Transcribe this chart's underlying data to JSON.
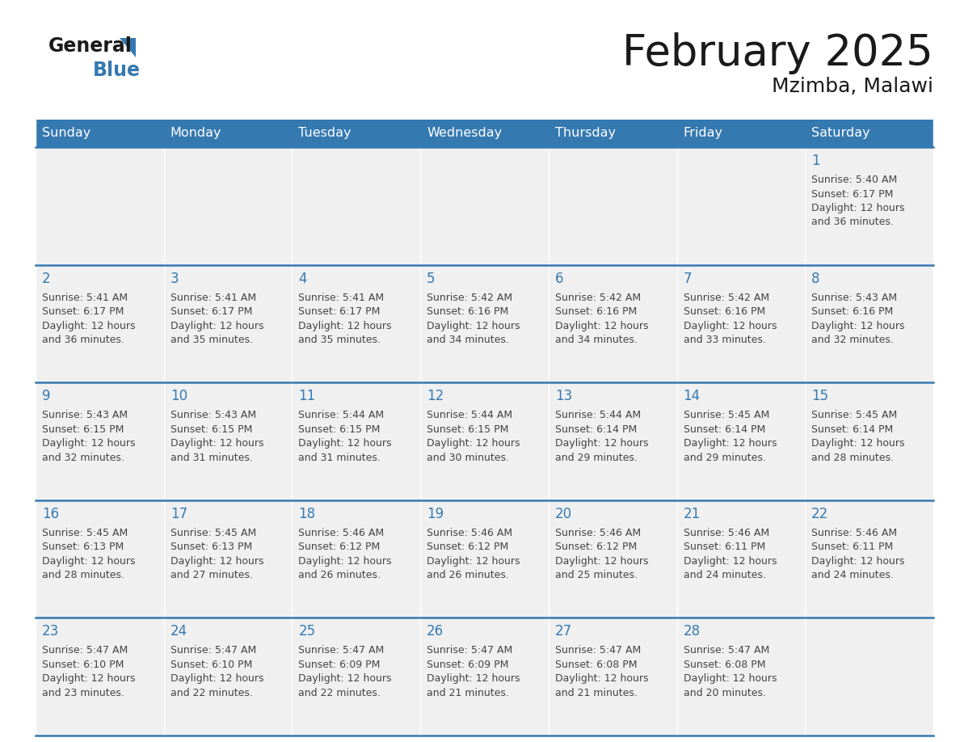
{
  "title": "February 2025",
  "subtitle": "Mzimba, Malawi",
  "header_bg": "#3579b1",
  "header_text_color": "#ffffff",
  "cell_bg": "#f0f0f0",
  "day_number_color": "#3579b1",
  "cell_text_color": "#444444",
  "border_color": "#3579b1",
  "grid_line_color": "#cccccc",
  "weekdays": [
    "Sunday",
    "Monday",
    "Tuesday",
    "Wednesday",
    "Thursday",
    "Friday",
    "Saturday"
  ],
  "calendar_data": [
    [
      {
        "day": null,
        "sunrise": null,
        "sunset": null,
        "daylight": null
      },
      {
        "day": null,
        "sunrise": null,
        "sunset": null,
        "daylight": null
      },
      {
        "day": null,
        "sunrise": null,
        "sunset": null,
        "daylight": null
      },
      {
        "day": null,
        "sunrise": null,
        "sunset": null,
        "daylight": null
      },
      {
        "day": null,
        "sunrise": null,
        "sunset": null,
        "daylight": null
      },
      {
        "day": null,
        "sunrise": null,
        "sunset": null,
        "daylight": null
      },
      {
        "day": 1,
        "sunrise": "5:40 AM",
        "sunset": "6:17 PM",
        "daylight": "12 hours and 36 minutes."
      }
    ],
    [
      {
        "day": 2,
        "sunrise": "5:41 AM",
        "sunset": "6:17 PM",
        "daylight": "12 hours and 36 minutes."
      },
      {
        "day": 3,
        "sunrise": "5:41 AM",
        "sunset": "6:17 PM",
        "daylight": "12 hours and 35 minutes."
      },
      {
        "day": 4,
        "sunrise": "5:41 AM",
        "sunset": "6:17 PM",
        "daylight": "12 hours and 35 minutes."
      },
      {
        "day": 5,
        "sunrise": "5:42 AM",
        "sunset": "6:16 PM",
        "daylight": "12 hours and 34 minutes."
      },
      {
        "day": 6,
        "sunrise": "5:42 AM",
        "sunset": "6:16 PM",
        "daylight": "12 hours and 34 minutes."
      },
      {
        "day": 7,
        "sunrise": "5:42 AM",
        "sunset": "6:16 PM",
        "daylight": "12 hours and 33 minutes."
      },
      {
        "day": 8,
        "sunrise": "5:43 AM",
        "sunset": "6:16 PM",
        "daylight": "12 hours and 32 minutes."
      }
    ],
    [
      {
        "day": 9,
        "sunrise": "5:43 AM",
        "sunset": "6:15 PM",
        "daylight": "12 hours and 32 minutes."
      },
      {
        "day": 10,
        "sunrise": "5:43 AM",
        "sunset": "6:15 PM",
        "daylight": "12 hours and 31 minutes."
      },
      {
        "day": 11,
        "sunrise": "5:44 AM",
        "sunset": "6:15 PM",
        "daylight": "12 hours and 31 minutes."
      },
      {
        "day": 12,
        "sunrise": "5:44 AM",
        "sunset": "6:15 PM",
        "daylight": "12 hours and 30 minutes."
      },
      {
        "day": 13,
        "sunrise": "5:44 AM",
        "sunset": "6:14 PM",
        "daylight": "12 hours and 29 minutes."
      },
      {
        "day": 14,
        "sunrise": "5:45 AM",
        "sunset": "6:14 PM",
        "daylight": "12 hours and 29 minutes."
      },
      {
        "day": 15,
        "sunrise": "5:45 AM",
        "sunset": "6:14 PM",
        "daylight": "12 hours and 28 minutes."
      }
    ],
    [
      {
        "day": 16,
        "sunrise": "5:45 AM",
        "sunset": "6:13 PM",
        "daylight": "12 hours and 28 minutes."
      },
      {
        "day": 17,
        "sunrise": "5:45 AM",
        "sunset": "6:13 PM",
        "daylight": "12 hours and 27 minutes."
      },
      {
        "day": 18,
        "sunrise": "5:46 AM",
        "sunset": "6:12 PM",
        "daylight": "12 hours and 26 minutes."
      },
      {
        "day": 19,
        "sunrise": "5:46 AM",
        "sunset": "6:12 PM",
        "daylight": "12 hours and 26 minutes."
      },
      {
        "day": 20,
        "sunrise": "5:46 AM",
        "sunset": "6:12 PM",
        "daylight": "12 hours and 25 minutes."
      },
      {
        "day": 21,
        "sunrise": "5:46 AM",
        "sunset": "6:11 PM",
        "daylight": "12 hours and 24 minutes."
      },
      {
        "day": 22,
        "sunrise": "5:46 AM",
        "sunset": "6:11 PM",
        "daylight": "12 hours and 24 minutes."
      }
    ],
    [
      {
        "day": 23,
        "sunrise": "5:47 AM",
        "sunset": "6:10 PM",
        "daylight": "12 hours and 23 minutes."
      },
      {
        "day": 24,
        "sunrise": "5:47 AM",
        "sunset": "6:10 PM",
        "daylight": "12 hours and 22 minutes."
      },
      {
        "day": 25,
        "sunrise": "5:47 AM",
        "sunset": "6:09 PM",
        "daylight": "12 hours and 22 minutes."
      },
      {
        "day": 26,
        "sunrise": "5:47 AM",
        "sunset": "6:09 PM",
        "daylight": "12 hours and 21 minutes."
      },
      {
        "day": 27,
        "sunrise": "5:47 AM",
        "sunset": "6:08 PM",
        "daylight": "12 hours and 21 minutes."
      },
      {
        "day": 28,
        "sunrise": "5:47 AM",
        "sunset": "6:08 PM",
        "daylight": "12 hours and 20 minutes."
      },
      {
        "day": null,
        "sunrise": null,
        "sunset": null,
        "daylight": null
      }
    ]
  ]
}
